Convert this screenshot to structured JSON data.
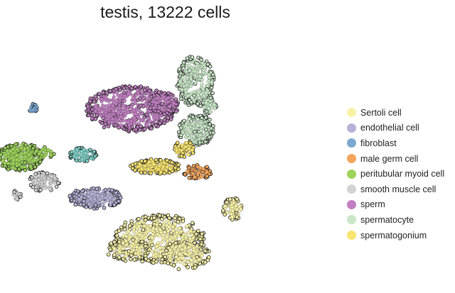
{
  "chart_data": {
    "type": "scatter",
    "title": "testis, 13222 cells",
    "xlabel": "",
    "ylabel": "",
    "axes_visible": false,
    "grid": false,
    "legend_position": "right",
    "series": [
      {
        "name": "Sertoli cell",
        "color": "#f7f2a6",
        "clusters": [
          {
            "cx": 0.47,
            "cy": 0.8,
            "rx": 0.13,
            "ry": 0.085,
            "n": 520
          },
          {
            "cx": 0.55,
            "cy": 0.86,
            "rx": 0.07,
            "ry": 0.05,
            "n": 150
          },
          {
            "cx": 0.38,
            "cy": 0.84,
            "rx": 0.06,
            "ry": 0.04,
            "n": 110
          },
          {
            "cx": 0.69,
            "cy": 0.69,
            "rx": 0.028,
            "ry": 0.04,
            "n": 90
          }
        ]
      },
      {
        "name": "endothelial cell",
        "color": "#b6b3d9",
        "clusters": [
          {
            "cx": 0.285,
            "cy": 0.65,
            "rx": 0.075,
            "ry": 0.038,
            "n": 240
          }
        ]
      },
      {
        "name": "fibroblast",
        "color": "#7ba7d1",
        "clusters": [
          {
            "cx": 0.098,
            "cy": 0.32,
            "rx": 0.014,
            "ry": 0.016,
            "n": 25
          }
        ]
      },
      {
        "name": "male germ cell",
        "color": "#f4a55a",
        "clusters": [
          {
            "cx": 0.585,
            "cy": 0.555,
            "rx": 0.04,
            "ry": 0.025,
            "n": 90
          }
        ]
      },
      {
        "name": "peritubular myoid cell",
        "color": "#9ed35a",
        "clusters": [
          {
            "cx": 0.06,
            "cy": 0.5,
            "rx": 0.065,
            "ry": 0.05,
            "n": 270
          },
          {
            "cx": 0.13,
            "cy": 0.485,
            "rx": 0.03,
            "ry": 0.02,
            "n": 40
          }
        ]
      },
      {
        "name": "smooth muscle cell",
        "color": "#d3d3d3",
        "clusters": [
          {
            "cx": 0.13,
            "cy": 0.59,
            "rx": 0.045,
            "ry": 0.035,
            "n": 90
          },
          {
            "cx": 0.05,
            "cy": 0.64,
            "rx": 0.012,
            "ry": 0.018,
            "n": 20
          }
        ]
      },
      {
        "name": "sperm",
        "color": "#c17fc1",
        "clusters": [
          {
            "cx": 0.39,
            "cy": 0.32,
            "rx": 0.13,
            "ry": 0.08,
            "n": 560
          },
          {
            "cx": 0.485,
            "cy": 0.3,
            "rx": 0.04,
            "ry": 0.04,
            "n": 90
          }
        ]
      },
      {
        "name": "spermatocyte",
        "color": "#c9e6c7",
        "clusters": [
          {
            "cx": 0.58,
            "cy": 0.22,
            "rx": 0.055,
            "ry": 0.09,
            "n": 280
          },
          {
            "cx": 0.58,
            "cy": 0.4,
            "rx": 0.05,
            "ry": 0.055,
            "n": 220
          },
          {
            "cx": 0.62,
            "cy": 0.31,
            "rx": 0.02,
            "ry": 0.03,
            "n": 40
          }
        ]
      },
      {
        "name": "spermatogonium",
        "color": "#f8e46e",
        "clusters": [
          {
            "cx": 0.46,
            "cy": 0.535,
            "rx": 0.07,
            "ry": 0.026,
            "n": 180
          },
          {
            "cx": 0.545,
            "cy": 0.47,
            "rx": 0.03,
            "ry": 0.03,
            "n": 70
          }
        ]
      },
      {
        "name": "",
        "color": "#7fd1c7",
        "clusters": [
          {
            "cx": 0.245,
            "cy": 0.49,
            "rx": 0.04,
            "ry": 0.025,
            "n": 80
          }
        ]
      }
    ]
  }
}
